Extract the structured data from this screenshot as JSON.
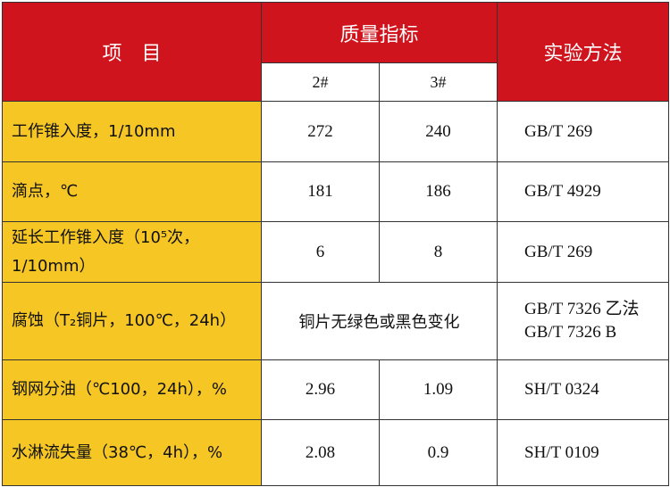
{
  "header": {
    "item": "项　目",
    "quality": "质量指标",
    "method": "实验方法",
    "grade_2": "2#",
    "grade_3": "3#"
  },
  "rows": [
    {
      "item": "工作锥入度，1/10mm",
      "v2": "272",
      "v3": "240",
      "method": "GB/T 269"
    },
    {
      "item": "滴点，℃",
      "v2": "181",
      "v3": "186",
      "method": "GB/T 4929"
    },
    {
      "item": "延长工作锥入度（10⁵次，1/10mm）",
      "v2": "6",
      "v3": "8",
      "method": "GB/T 269"
    },
    {
      "item": "腐蚀（T₂铜片，100℃，24h）",
      "merged": "铜片无绿色或黑色变化",
      "method": "GB/T 7326 乙法",
      "method2": "GB/T 7326 B"
    },
    {
      "item": "钢网分油（℃100，24h），%",
      "v2": "2.96",
      "v3": "1.09",
      "method": "SH/T 0324"
    },
    {
      "item": "水淋流失量（38℃，4h），%",
      "v2": "2.08",
      "v3": "0.9",
      "method": "SH/T 0109"
    }
  ],
  "colors": {
    "header_red": "#cf141d",
    "item_yellow": "#f5c624"
  }
}
